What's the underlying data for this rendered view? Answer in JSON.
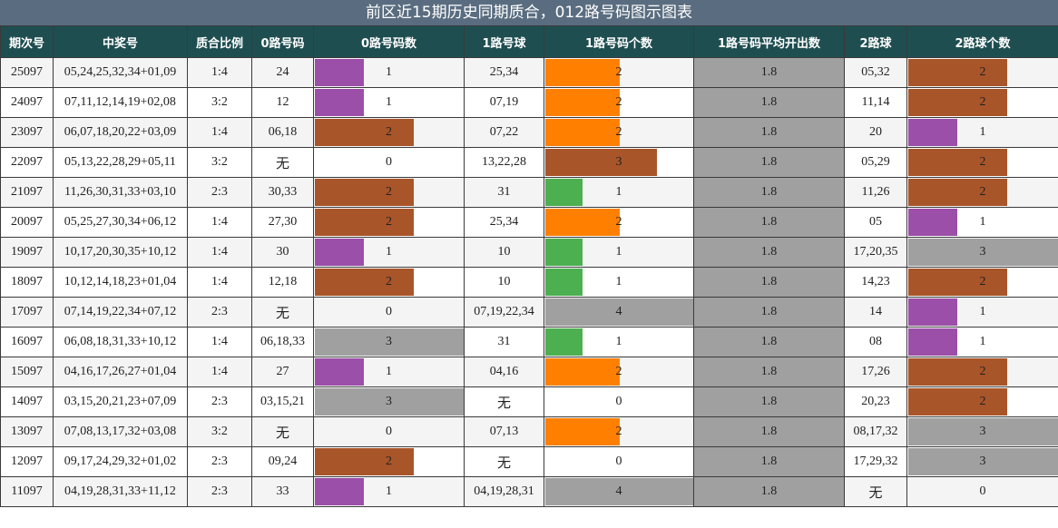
{
  "title": "前区近15期历史同期质合，012路号码图示图表",
  "headers": [
    "期次号",
    "中奖号",
    "质合比例",
    "0路号码",
    "0路号码数",
    "1路号球",
    "1路号码个数",
    "1路号码平均开出数",
    "2路球",
    "2路球个数"
  ],
  "colors": {
    "bar_1": "#9b4fa8",
    "bar_2": "#a9552a",
    "bar_3": "#a0a0a0",
    "bar_4": "#a0a0a0",
    "one_bar_1": "#4caf50",
    "one_bar_2": "#ff8000",
    "one_bar_3": "#a9552a",
    "one_bar_4": "#a0a0a0",
    "header_bg": "#1f4e51",
    "title_bg": "#5a6d80"
  },
  "rows": [
    {
      "issue": "25097",
      "numbers": "05,24,25,32,34+01,09",
      "ratio": "1:4",
      "zero_nums": "24",
      "zero_count": 1,
      "one_nums": "25,34",
      "one_count": 2,
      "one_avg": "1.8",
      "two_nums": "05,32",
      "two_count": 2
    },
    {
      "issue": "24097",
      "numbers": "07,11,12,14,19+02,08",
      "ratio": "3:2",
      "zero_nums": "12",
      "zero_count": 1,
      "one_nums": "07,19",
      "one_count": 2,
      "one_avg": "1.8",
      "two_nums": "11,14",
      "two_count": 2
    },
    {
      "issue": "23097",
      "numbers": "06,07,18,20,22+03,09",
      "ratio": "1:4",
      "zero_nums": "06,18",
      "zero_count": 2,
      "one_nums": "07,22",
      "one_count": 2,
      "one_avg": "1.8",
      "two_nums": "20",
      "two_count": 1
    },
    {
      "issue": "22097",
      "numbers": "05,13,22,28,29+05,11",
      "ratio": "3:2",
      "zero_nums": "无",
      "zero_count": 0,
      "one_nums": "13,22,28",
      "one_count": 3,
      "one_avg": "1.8",
      "two_nums": "05,29",
      "two_count": 2
    },
    {
      "issue": "21097",
      "numbers": "11,26,30,31,33+03,10",
      "ratio": "2:3",
      "zero_nums": "30,33",
      "zero_count": 2,
      "one_nums": "31",
      "one_count": 1,
      "one_avg": "1.8",
      "two_nums": "11,26",
      "two_count": 2
    },
    {
      "issue": "20097",
      "numbers": "05,25,27,30,34+06,12",
      "ratio": "1:4",
      "zero_nums": "27,30",
      "zero_count": 2,
      "one_nums": "25,34",
      "one_count": 2,
      "one_avg": "1.8",
      "two_nums": "05",
      "two_count": 1
    },
    {
      "issue": "19097",
      "numbers": "10,17,20,30,35+10,12",
      "ratio": "1:4",
      "zero_nums": "30",
      "zero_count": 1,
      "one_nums": "10",
      "one_count": 1,
      "one_avg": "1.8",
      "two_nums": "17,20,35",
      "two_count": 3
    },
    {
      "issue": "18097",
      "numbers": "10,12,14,18,23+01,04",
      "ratio": "1:4",
      "zero_nums": "12,18",
      "zero_count": 2,
      "one_nums": "10",
      "one_count": 1,
      "one_avg": "1.8",
      "two_nums": "14,23",
      "two_count": 2
    },
    {
      "issue": "17097",
      "numbers": "07,14,19,22,34+07,12",
      "ratio": "2:3",
      "zero_nums": "无",
      "zero_count": 0,
      "one_nums": "07,19,22,34",
      "one_count": 4,
      "one_avg": "1.8",
      "two_nums": "14",
      "two_count": 1
    },
    {
      "issue": "16097",
      "numbers": "06,08,18,31,33+10,12",
      "ratio": "1:4",
      "zero_nums": "06,18,33",
      "zero_count": 3,
      "one_nums": "31",
      "one_count": 1,
      "one_avg": "1.8",
      "two_nums": "08",
      "two_count": 1
    },
    {
      "issue": "15097",
      "numbers": "04,16,17,26,27+01,04",
      "ratio": "1:4",
      "zero_nums": "27",
      "zero_count": 1,
      "one_nums": "04,16",
      "one_count": 2,
      "one_avg": "1.8",
      "two_nums": "17,26",
      "two_count": 2
    },
    {
      "issue": "14097",
      "numbers": "03,15,20,21,23+07,09",
      "ratio": "2:3",
      "zero_nums": "03,15,21",
      "zero_count": 3,
      "one_nums": "无",
      "one_count": 0,
      "one_avg": "1.8",
      "two_nums": "20,23",
      "two_count": 2
    },
    {
      "issue": "13097",
      "numbers": "07,08,13,17,32+03,08",
      "ratio": "3:2",
      "zero_nums": "无",
      "zero_count": 0,
      "one_nums": "07,13",
      "one_count": 2,
      "one_avg": "1.8",
      "two_nums": "08,17,32",
      "two_count": 3
    },
    {
      "issue": "12097",
      "numbers": "09,17,24,29,32+01,02",
      "ratio": "2:3",
      "zero_nums": "09,24",
      "zero_count": 2,
      "one_nums": "无",
      "one_count": 0,
      "one_avg": "1.8",
      "two_nums": "17,29,32",
      "two_count": 3
    },
    {
      "issue": "11097",
      "numbers": "04,19,28,31,33+11,12",
      "ratio": "2:3",
      "zero_nums": "33",
      "zero_count": 1,
      "one_nums": "04,19,28,31",
      "one_count": 4,
      "one_avg": "1.8",
      "two_nums": "无",
      "two_count": 0
    }
  ]
}
